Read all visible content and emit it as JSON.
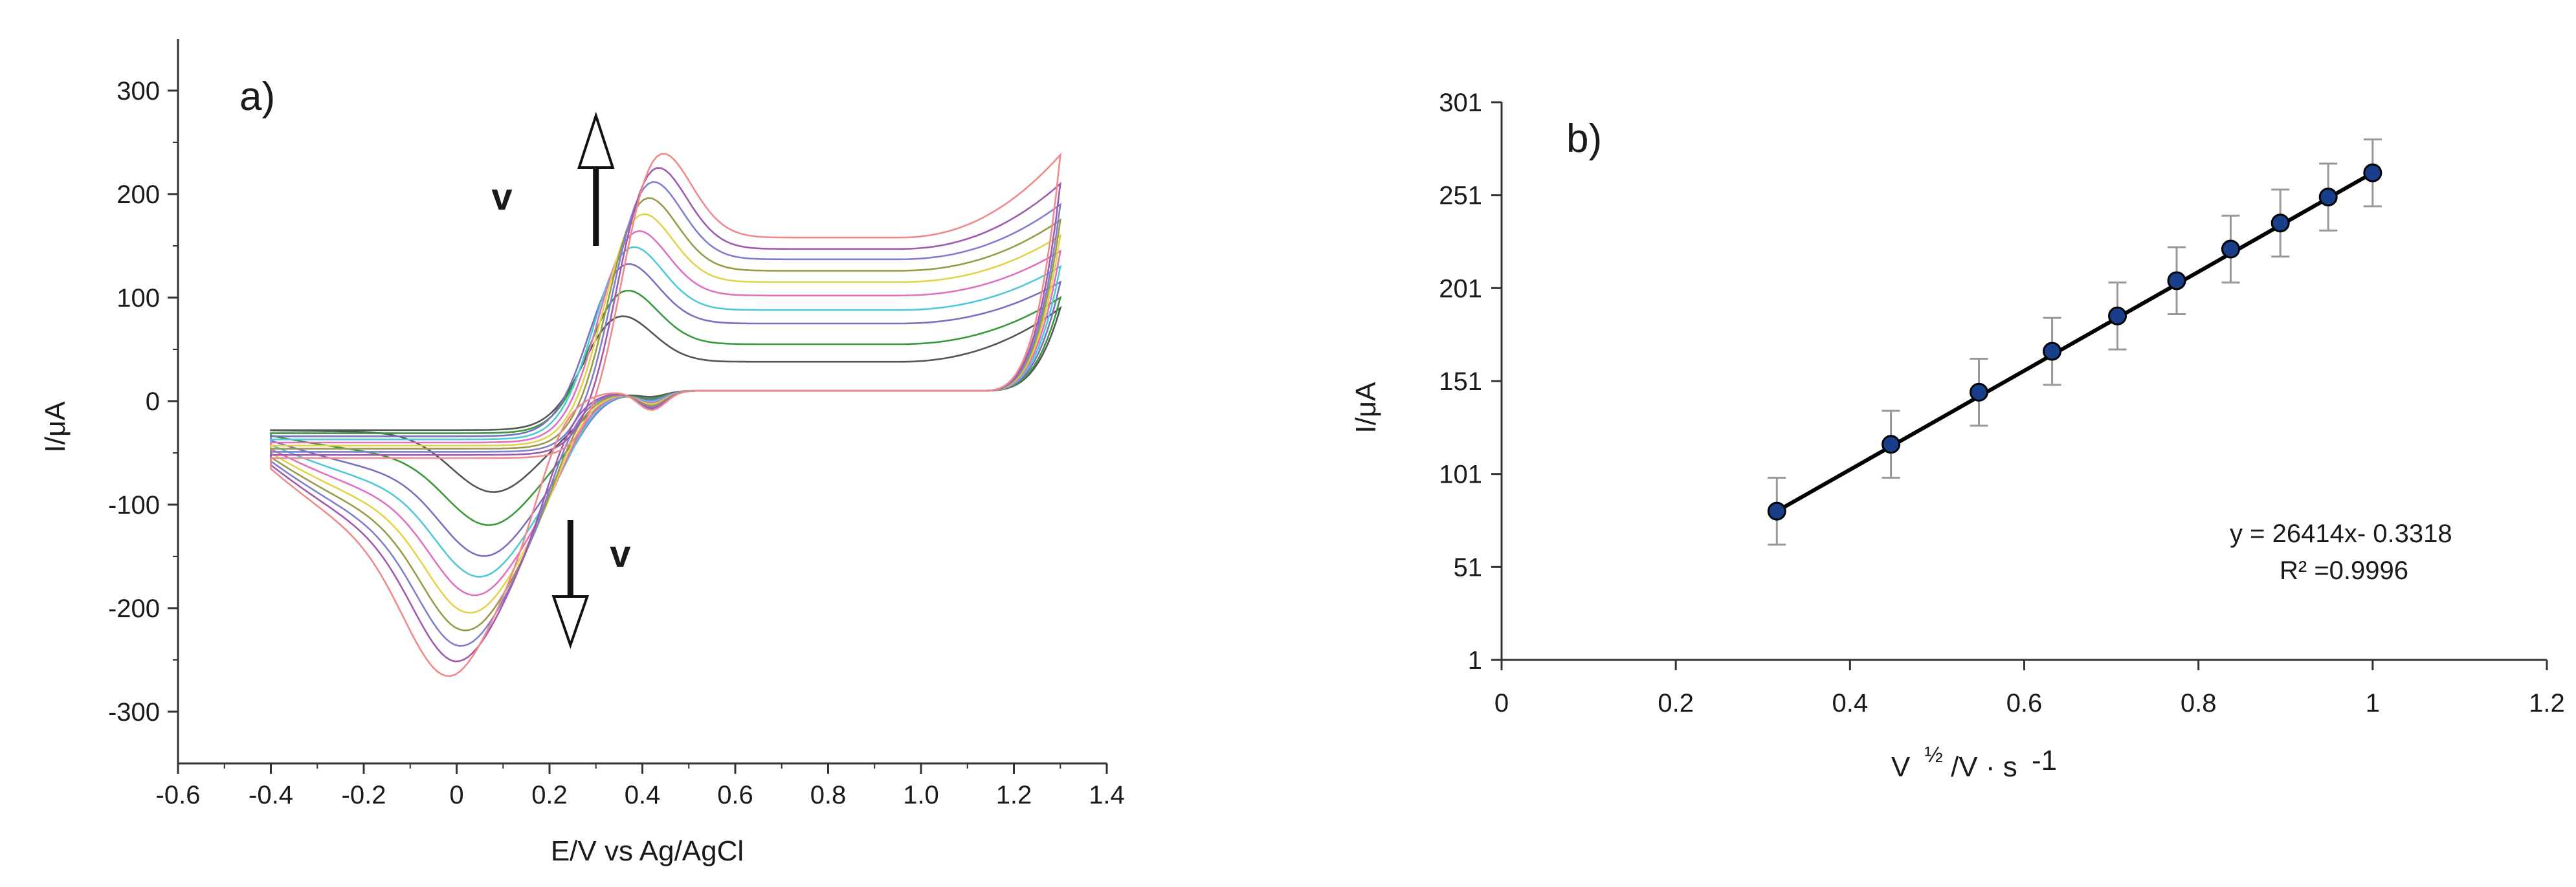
{
  "chart_data": [
    {
      "type": "line",
      "panel_label": "a)",
      "xlabel": "E/V vs Ag/AgCl",
      "ylabel": "I/μA",
      "xlim": [
        -0.6,
        1.4
      ],
      "ylim": [
        -350,
        350
      ],
      "x_ticks": [
        "-0.6",
        "-0.4",
        "-0.2",
        "0",
        "0.2",
        "0.4",
        "0.6",
        "0.8",
        "1.0",
        "1.2",
        "1.4"
      ],
      "y_ticks": [
        "300",
        "200",
        "100",
        "0",
        "-100",
        "-200",
        "-300"
      ],
      "annotations": [
        {
          "text": "v",
          "direction": "up",
          "x": 0.2,
          "y": 195
        },
        {
          "text": "v",
          "direction": "down",
          "x": 0.35,
          "y": -155
        }
      ],
      "potential_window": [
        -0.4,
        1.3
      ],
      "series": [
        {
          "color": "#555555",
          "anodic_peak": {
            "x": 0.34,
            "y": 90
          },
          "cathodic_peak": {
            "x": 0.08,
            "y": -88
          },
          "forward_plateau": 38,
          "reverse_plateau": -30,
          "end_current": 90
        },
        {
          "color": "#3a9a3a",
          "anodic_peak": {
            "x": 0.35,
            "y": 117
          },
          "cathodic_peak": {
            "x": 0.07,
            "y": -120
          },
          "forward_plateau": 55,
          "reverse_plateau": -55,
          "end_current": 100
        },
        {
          "color": "#7b6fc0",
          "anodic_peak": {
            "x": 0.35,
            "y": 145
          },
          "cathodic_peak": {
            "x": 0.06,
            "y": -150
          },
          "forward_plateau": 75,
          "reverse_plateau": -75,
          "end_current": 115
        },
        {
          "color": "#4fc8d8",
          "anodic_peak": {
            "x": 0.36,
            "y": 163
          },
          "cathodic_peak": {
            "x": 0.05,
            "y": -170
          },
          "forward_plateau": 88,
          "reverse_plateau": -90,
          "end_current": 130
        },
        {
          "color": "#e070c0",
          "anodic_peak": {
            "x": 0.37,
            "y": 180
          },
          "cathodic_peak": {
            "x": 0.04,
            "y": -188
          },
          "forward_plateau": 102,
          "reverse_plateau": -103,
          "end_current": 145
        },
        {
          "color": "#e3d24a",
          "anodic_peak": {
            "x": 0.38,
            "y": 198
          },
          "cathodic_peak": {
            "x": 0.03,
            "y": -205
          },
          "forward_plateau": 115,
          "reverse_plateau": -116,
          "end_current": 160
        },
        {
          "color": "#9a9a4a",
          "anodic_peak": {
            "x": 0.39,
            "y": 215
          },
          "cathodic_peak": {
            "x": 0.02,
            "y": -222
          },
          "forward_plateau": 126,
          "reverse_plateau": -128,
          "end_current": 175
        },
        {
          "color": "#7f7fd0",
          "anodic_peak": {
            "x": 0.4,
            "y": 232
          },
          "cathodic_peak": {
            "x": 0.01,
            "y": -237
          },
          "forward_plateau": 137,
          "reverse_plateau": -139,
          "end_current": 190
        },
        {
          "color": "#a05ab0",
          "anodic_peak": {
            "x": 0.41,
            "y": 247
          },
          "cathodic_peak": {
            "x": 0.0,
            "y": -252
          },
          "forward_plateau": 147,
          "reverse_plateau": -149,
          "end_current": 210
        },
        {
          "color": "#f08a8a",
          "anodic_peak": {
            "x": 0.42,
            "y": 262
          },
          "cathodic_peak": {
            "x": -0.02,
            "y": -267
          },
          "forward_plateau": 158,
          "reverse_plateau": -160,
          "end_current": 238
        }
      ]
    },
    {
      "type": "scatter",
      "panel_label": "b)",
      "xlabel": "V ½/V · s -1",
      "xlabel_parts": {
        "v": "V",
        "half": "½",
        "rest": "/V · s",
        "exp": "-1"
      },
      "ylabel": "I/μA",
      "xlim": [
        0,
        1.2
      ],
      "ylim": [
        1,
        301
      ],
      "x_ticks": [
        "0",
        "0.2",
        "0.4",
        "0.6",
        "0.8",
        "1",
        "1.2"
      ],
      "y_ticks": [
        "301",
        "251",
        "201",
        "151",
        "101",
        "51",
        "1"
      ],
      "x": [
        0.316,
        0.447,
        0.548,
        0.632,
        0.707,
        0.775,
        0.837,
        0.894,
        0.949,
        1.0
      ],
      "y": [
        81,
        117,
        145,
        167,
        186,
        205,
        222,
        236,
        250,
        263
      ],
      "error": 18,
      "fit": {
        "slope_label": "y = 26414x- 0.3318",
        "r2_label": "R² =0.9996"
      },
      "marker_color": "#1a3f8a",
      "line_color": "#000000"
    }
  ]
}
